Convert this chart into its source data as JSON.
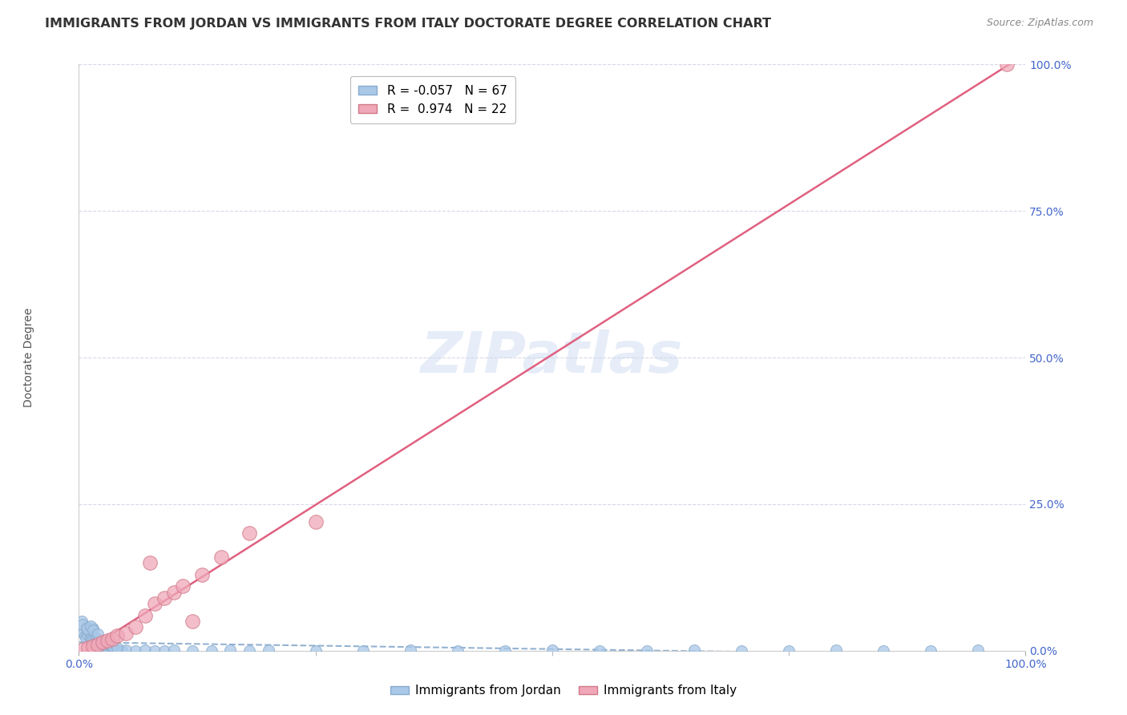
{
  "title": "IMMIGRANTS FROM JORDAN VS IMMIGRANTS FROM ITALY DOCTORATE DEGREE CORRELATION CHART",
  "source": "Source: ZipAtlas.com",
  "ylabel": "Doctorate Degree",
  "xlim": [
    0.0,
    1.0
  ],
  "ylim": [
    0.0,
    1.0
  ],
  "x_tick_labels": [
    "0.0%",
    "100.0%"
  ],
  "y_tick_labels": [
    "0.0%",
    "25.0%",
    "50.0%",
    "75.0%",
    "100.0%"
  ],
  "y_tick_positions": [
    0.0,
    0.25,
    0.5,
    0.75,
    1.0
  ],
  "grid_color": "#d8d8e8",
  "background_color": "#ffffff",
  "watermark": "ZIPatlas",
  "jordan_color": "#aac8e8",
  "jordan_edge": "#88aacc",
  "italy_color": "#f0a8b8",
  "italy_edge": "#d07888",
  "jordan_R": -0.057,
  "jordan_N": 67,
  "italy_R": 0.974,
  "italy_N": 22,
  "legend_label_jordan": "Immigrants from Jordan",
  "legend_label_italy": "Immigrants from Italy",
  "jordan_scatter_x": [
    0.005,
    0.006,
    0.007,
    0.008,
    0.009,
    0.01,
    0.011,
    0.012,
    0.013,
    0.014,
    0.015,
    0.016,
    0.017,
    0.018,
    0.019,
    0.02,
    0.021,
    0.022,
    0.023,
    0.024,
    0.025,
    0.026,
    0.027,
    0.028,
    0.03,
    0.032,
    0.034,
    0.036,
    0.038,
    0.04,
    0.045,
    0.05,
    0.06,
    0.07,
    0.08,
    0.09,
    0.1,
    0.12,
    0.14,
    0.16,
    0.18,
    0.2,
    0.25,
    0.3,
    0.35,
    0.4,
    0.45,
    0.5,
    0.55,
    0.6,
    0.65,
    0.7,
    0.75,
    0.8,
    0.85,
    0.9,
    0.95,
    0.003,
    0.004,
    0.008,
    0.012,
    0.015,
    0.02,
    0.025,
    0.03,
    0.035,
    0.04
  ],
  "jordan_scatter_y": [
    0.03,
    0.025,
    0.022,
    0.04,
    0.028,
    0.035,
    0.032,
    0.02,
    0.018,
    0.015,
    0.038,
    0.012,
    0.01,
    0.022,
    0.008,
    0.016,
    0.006,
    0.005,
    0.004,
    0.003,
    0.01,
    0.002,
    0.004,
    0.003,
    0.002,
    0.001,
    0.002,
    0.001,
    0.0,
    0.001,
    0.0,
    0.001,
    0.0,
    0.001,
    0.0,
    0.0,
    0.001,
    0.0,
    0.0,
    0.001,
    0.0,
    0.001,
    0.0,
    0.0,
    0.001,
    0.0,
    0.0,
    0.001,
    0.0,
    0.0,
    0.001,
    0.0,
    0.0,
    0.001,
    0.0,
    0.0,
    0.001,
    0.05,
    0.045,
    0.038,
    0.042,
    0.035,
    0.028,
    0.015,
    0.012,
    0.008,
    0.005
  ],
  "italy_scatter_x": [
    0.005,
    0.01,
    0.015,
    0.02,
    0.025,
    0.03,
    0.035,
    0.04,
    0.05,
    0.06,
    0.07,
    0.075,
    0.08,
    0.09,
    0.1,
    0.11,
    0.12,
    0.13,
    0.15,
    0.18,
    0.25,
    0.98
  ],
  "italy_scatter_y": [
    0.002,
    0.005,
    0.008,
    0.01,
    0.015,
    0.018,
    0.02,
    0.025,
    0.03,
    0.04,
    0.06,
    0.15,
    0.08,
    0.09,
    0.1,
    0.11,
    0.05,
    0.13,
    0.16,
    0.2,
    0.22,
    1.0
  ],
  "axis_label_color": "#4466cc",
  "title_fontsize": 11.5,
  "axis_tick_fontsize": 10,
  "ylabel_fontsize": 10,
  "scatter_size_jordan": 100,
  "scatter_size_italy": 160,
  "trend_italy_x0": 0.0,
  "trend_italy_y0": 0.0,
  "trend_italy_x1": 1.0,
  "trend_italy_y1": 1.02,
  "trend_jordan_x0": 0.0,
  "trend_jordan_y0": 0.008,
  "trend_jordan_x1": 1.0,
  "trend_jordan_y1": 0.0
}
